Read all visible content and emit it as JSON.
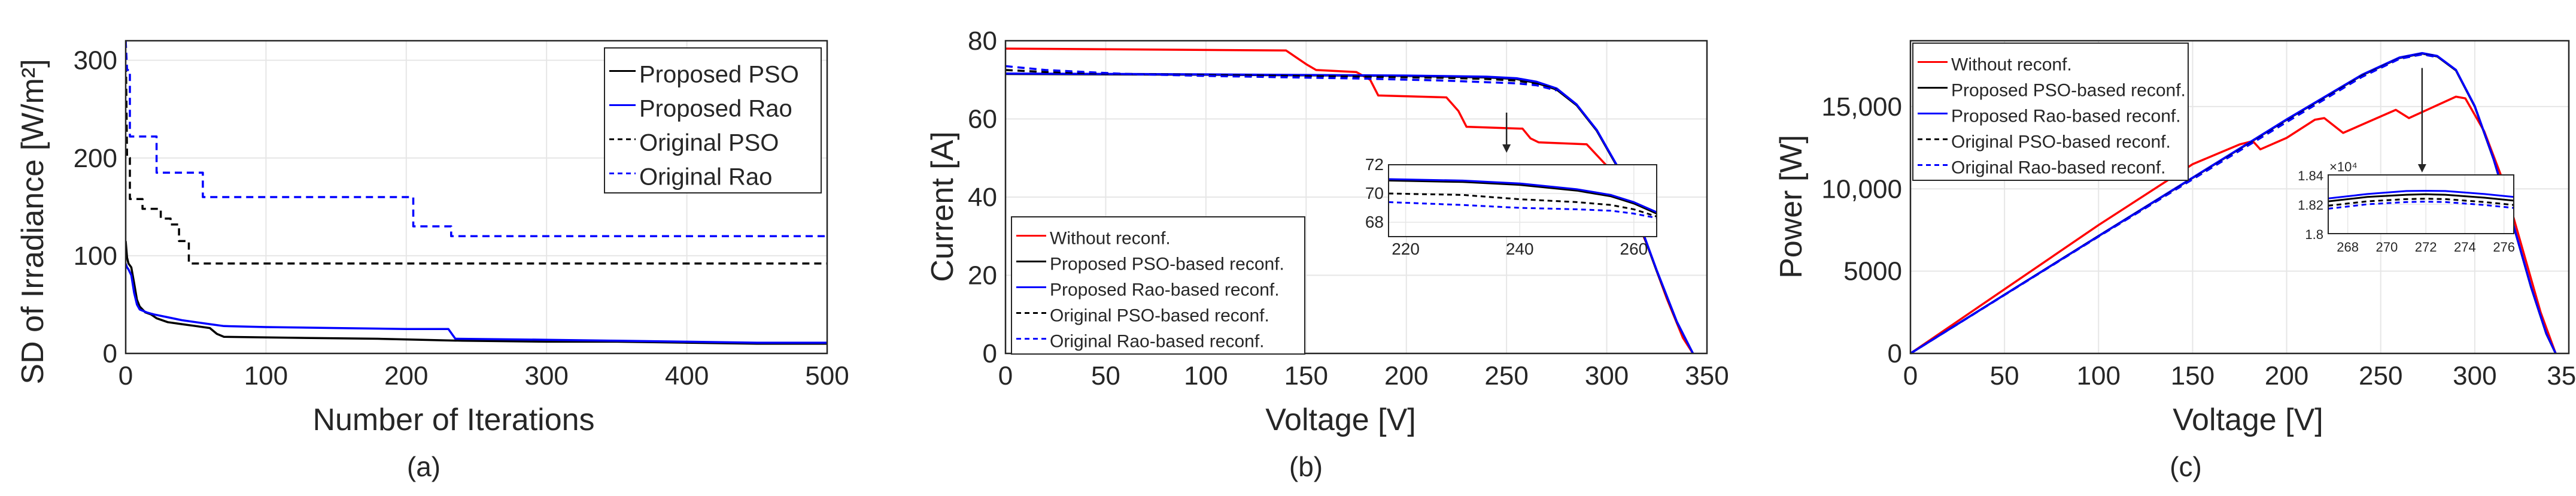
{
  "chart_data": [
    {
      "type": "line",
      "caption": "(a)",
      "xlabel": "Number of Iterations",
      "ylabel": "SD of Irradiance [W/m²]",
      "xlim": [
        0,
        500
      ],
      "ylim": [
        0,
        320
      ],
      "xticks": [
        0,
        100,
        200,
        300,
        400,
        500
      ],
      "yticks": [
        0,
        100,
        200,
        300
      ],
      "xtick_labels": [
        "0",
        "100",
        "200",
        "300",
        "400",
        "500"
      ],
      "ytick_labels": [
        "0",
        "100",
        "200",
        "300"
      ],
      "legend_position": "top-right",
      "series": [
        {
          "name": "Proposed PSO",
          "color": "#000000",
          "dash": "solid",
          "x": [
            0,
            1,
            2,
            4,
            6,
            8,
            10,
            14,
            18,
            22,
            30,
            40,
            50,
            60,
            65,
            70,
            120,
            180,
            240,
            300,
            350,
            400,
            450,
            500
          ],
          "y": [
            115,
            98,
            92,
            88,
            72,
            55,
            48,
            42,
            40,
            36,
            32,
            30,
            28,
            26,
            20,
            17,
            16,
            15,
            13,
            12,
            12,
            11,
            10,
            10
          ]
        },
        {
          "name": "Proposed Rao",
          "color": "#0000ff",
          "dash": "solid",
          "x": [
            0,
            1,
            2,
            4,
            6,
            8,
            10,
            15,
            20,
            30,
            40,
            50,
            60,
            70,
            100,
            150,
            200,
            230,
            235,
            300,
            350,
            400,
            450,
            500
          ],
          "y": [
            92,
            88,
            86,
            80,
            62,
            50,
            45,
            42,
            40,
            37,
            34,
            32,
            30,
            28,
            27,
            26,
            25,
            25,
            15,
            14,
            13,
            12,
            11,
            11
          ]
        },
        {
          "name": "Original PSO",
          "color": "#000000",
          "dash": "dashed",
          "x": [
            0,
            1,
            3,
            3,
            12,
            12,
            25,
            25,
            32,
            32,
            38,
            38,
            45,
            45,
            500
          ],
          "y": [
            320,
            200,
            200,
            158,
            158,
            148,
            148,
            138,
            138,
            132,
            132,
            115,
            115,
            92,
            92
          ]
        },
        {
          "name": "Original Rao",
          "color": "#0000ff",
          "dash": "dashed",
          "x": [
            0,
            1,
            3,
            3,
            22,
            22,
            55,
            55,
            205,
            205,
            232,
            232,
            500
          ],
          "y": [
            320,
            290,
            290,
            222,
            222,
            185,
            185,
            160,
            160,
            130,
            130,
            120,
            120
          ]
        }
      ]
    },
    {
      "type": "line",
      "caption": "(b)",
      "xlabel": "Voltage [V]",
      "ylabel": "Current [A]",
      "xlim": [
        0,
        350
      ],
      "ylim": [
        0,
        80
      ],
      "xticks": [
        0,
        50,
        100,
        150,
        200,
        250,
        300,
        350
      ],
      "yticks": [
        0,
        20,
        40,
        60,
        80
      ],
      "xtick_labels": [
        "0",
        "50",
        "100",
        "150",
        "200",
        "250",
        "300",
        "350"
      ],
      "ytick_labels": [
        "0",
        "20",
        "40",
        "60",
        "80"
      ],
      "legend_position": "bottom-left",
      "series": [
        {
          "name": "Without reconf.",
          "color": "#ff0000",
          "dash": "solid",
          "x": [
            0,
            140,
            150,
            155,
            175,
            182,
            186,
            220,
            226,
            230,
            258,
            262,
            266,
            290,
            300,
            310,
            320,
            330,
            338,
            343
          ],
          "y": [
            78,
            77.5,
            74,
            72.5,
            72,
            70,
            66,
            65.5,
            62,
            58,
            57.5,
            55,
            54,
            53.5,
            48,
            40,
            28,
            14,
            4,
            0
          ]
        },
        {
          "name": "Proposed PSO-based reconf.",
          "color": "#000000",
          "dash": "solid",
          "x": [
            0,
            100,
            200,
            240,
            255,
            265,
            275,
            285,
            295,
            305,
            315,
            325,
            335,
            343
          ],
          "y": [
            71.5,
            71.3,
            71,
            70.6,
            70.2,
            69.2,
            67.5,
            63.5,
            57,
            48,
            35,
            21,
            8,
            0
          ]
        },
        {
          "name": "Proposed Rao-based reconf.",
          "color": "#0000ff",
          "dash": "solid",
          "x": [
            0,
            100,
            200,
            240,
            255,
            265,
            275,
            285,
            295,
            305,
            315,
            325,
            335,
            343
          ],
          "y": [
            71.6,
            71.4,
            71.1,
            70.8,
            70.4,
            69.5,
            67.8,
            63.7,
            57.2,
            48.2,
            35.2,
            21.2,
            8.1,
            0
          ]
        },
        {
          "name": "Original PSO-based reconf.",
          "color": "#000000",
          "dash": "dashed",
          "x": [
            0,
            20,
            60,
            100,
            180,
            220,
            240,
            255,
            265,
            275
          ],
          "y": [
            72.5,
            72,
            71.5,
            71.2,
            70.8,
            70.5,
            70.2,
            69.8,
            69,
            67.5
          ]
        },
        {
          "name": "Original Rao-based reconf.",
          "color": "#0000ff",
          "dash": "dashed",
          "x": [
            0,
            20,
            60,
            100,
            180,
            220,
            240,
            255,
            265,
            275
          ],
          "y": [
            73.5,
            72.5,
            71.5,
            71,
            70.3,
            69.8,
            69.4,
            69.1,
            68.6,
            67.3
          ]
        }
      ],
      "inset": {
        "xlim": [
          217,
          264
        ],
        "ylim": [
          67,
          72
        ],
        "xticks": [
          220,
          240,
          260
        ],
        "yticks": [
          68,
          70,
          72
        ],
        "xtick_labels": [
          "220",
          "240",
          "260"
        ],
        "ytick_labels": [
          "68",
          "70",
          "72"
        ],
        "series": [
          {
            "name": "Proposed PSO-based reconf.",
            "x": [
              217,
              230,
              240,
              250,
              256,
              260,
              264
            ],
            "y": [
              70.9,
              70.8,
              70.6,
              70.2,
              69.8,
              69.3,
              68.6
            ]
          },
          {
            "name": "Proposed Rao-based reconf.",
            "x": [
              217,
              230,
              240,
              250,
              256,
              260,
              264
            ],
            "y": [
              71.0,
              70.9,
              70.7,
              70.3,
              69.9,
              69.4,
              68.7
            ]
          },
          {
            "name": "Original PSO-based reconf.",
            "x": [
              217,
              230,
              240,
              250,
              256,
              260,
              264
            ],
            "y": [
              70.0,
              69.9,
              69.6,
              69.4,
              69.2,
              68.9,
              68.4
            ]
          },
          {
            "name": "Original Rao-based reconf.",
            "x": [
              217,
              230,
              240,
              250,
              256,
              260,
              264
            ],
            "y": [
              69.4,
              69.2,
              69.0,
              68.9,
              68.8,
              68.6,
              68.3
            ]
          }
        ],
        "arrow_to": [
          250,
          58
        ]
      }
    },
    {
      "type": "line",
      "caption": "(c)",
      "xlabel": "Voltage [V]",
      "ylabel": "Power [W]",
      "xlim": [
        0,
        350
      ],
      "ylim": [
        0,
        19000
      ],
      "xticks": [
        0,
        50,
        100,
        150,
        200,
        250,
        300,
        350
      ],
      "yticks": [
        0,
        5000,
        10000,
        15000
      ],
      "xtick_labels": [
        "0",
        "50",
        "100",
        "150",
        "200",
        "250",
        "300",
        "350"
      ],
      "ytick_labels": [
        "0",
        "5000",
        "10,000",
        "15,000"
      ],
      "legend_position": "top-left",
      "series": [
        {
          "name": "Without reconf.",
          "color": "#ff0000",
          "dash": "solid",
          "x": [
            0,
            100,
            150,
            175,
            182,
            186,
            200,
            215,
            220,
            230,
            250,
            258,
            265,
            290,
            295,
            305,
            315,
            325,
            335,
            343
          ],
          "y": [
            0,
            7800,
            11500,
            12700,
            12900,
            12400,
            13100,
            14200,
            14300,
            13400,
            14400,
            14800,
            14300,
            15600,
            15500,
            13500,
            10500,
            6500,
            2500,
            0
          ]
        },
        {
          "name": "Proposed PSO-based reconf.",
          "color": "#000000",
          "dash": "solid",
          "x": [
            0,
            100,
            200,
            240,
            260,
            272,
            280,
            290,
            300,
            310,
            320,
            330,
            338,
            343
          ],
          "y": [
            0,
            7130,
            14200,
            16900,
            17950,
            18220,
            18050,
            17200,
            15000,
            11800,
            8000,
            4000,
            1200,
            0
          ]
        },
        {
          "name": "Proposed Rao-based reconf.",
          "color": "#0000ff",
          "dash": "solid",
          "x": [
            0,
            100,
            200,
            240,
            260,
            272,
            280,
            290,
            300,
            310,
            320,
            330,
            338,
            343
          ],
          "y": [
            0,
            7140,
            14220,
            16930,
            17980,
            18250,
            18080,
            17230,
            15030,
            11830,
            8030,
            4030,
            1230,
            0
          ]
        },
        {
          "name": "Original PSO-based reconf.",
          "color": "#000000",
          "dash": "dashed",
          "x": [
            0,
            100,
            200,
            240,
            260,
            272,
            280
          ],
          "y": [
            0,
            7120,
            14100,
            16850,
            17920,
            18190,
            18030
          ]
        },
        {
          "name": "Original Rao-based reconf.",
          "color": "#0000ff",
          "dash": "dashed",
          "x": [
            0,
            100,
            200,
            240,
            260,
            272,
            280
          ],
          "y": [
            0,
            7100,
            14060,
            16800,
            17900,
            18170,
            18010
          ]
        }
      ],
      "inset": {
        "xlim": [
          267,
          276.5
        ],
        "ylim": [
          18000,
          18400
        ],
        "xticks": [
          268,
          270,
          272,
          274,
          276
        ],
        "yticks": [
          18000,
          18200,
          18400
        ],
        "xtick_labels": [
          "268",
          "270",
          "272",
          "274",
          "276"
        ],
        "ytick_labels": [
          "1.8",
          "1.82",
          "1.84"
        ],
        "exponent_label": "×10⁴",
        "series": [
          {
            "name": "Proposed PSO-based reconf.",
            "x": [
              267,
              269,
              271,
              272,
              273,
              275,
              276.5
            ],
            "y": [
              18220,
              18250,
              18265,
              18268,
              18265,
              18245,
              18225
            ]
          },
          {
            "name": "Proposed Rao-based reconf.",
            "x": [
              267,
              269,
              271,
              272,
              273,
              275,
              276.5
            ],
            "y": [
              18240,
              18270,
              18290,
              18292,
              18290,
              18270,
              18250
            ]
          },
          {
            "name": "Original PSO-based reconf.",
            "x": [
              267,
              269,
              271,
              272,
              273,
              275,
              276.5
            ],
            "y": [
              18190,
              18220,
              18235,
              18238,
              18235,
              18215,
              18195
            ]
          },
          {
            "name": "Original Rao-based reconf.",
            "x": [
              267,
              269,
              271,
              272,
              273,
              275,
              276.5
            ],
            "y": [
              18170,
              18200,
              18215,
              18218,
              18215,
              18195,
              18175
            ]
          }
        ],
        "arrow_to": [
          272,
          18200
        ]
      }
    }
  ]
}
